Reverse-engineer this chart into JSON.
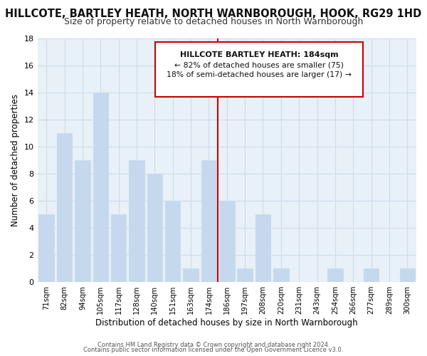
{
  "title": "HILLCOTE, BARTLEY HEATH, NORTH WARNBOROUGH, HOOK, RG29 1HD",
  "subtitle": "Size of property relative to detached houses in North Warnborough",
  "xlabel": "Distribution of detached houses by size in North Warnborough",
  "ylabel": "Number of detached properties",
  "bar_labels": [
    "71sqm",
    "82sqm",
    "94sqm",
    "105sqm",
    "117sqm",
    "128sqm",
    "140sqm",
    "151sqm",
    "163sqm",
    "174sqm",
    "186sqm",
    "197sqm",
    "208sqm",
    "220sqm",
    "231sqm",
    "243sqm",
    "254sqm",
    "266sqm",
    "277sqm",
    "289sqm",
    "300sqm"
  ],
  "bar_values": [
    5,
    11,
    9,
    14,
    5,
    9,
    8,
    6,
    1,
    9,
    6,
    1,
    5,
    1,
    0,
    0,
    1,
    0,
    1,
    0,
    1
  ],
  "bar_color": "#c5d8ed",
  "bar_edge_color": "#c8ddf0",
  "vline_index": 10,
  "vline_color": "#cc0000",
  "annotation_title": "HILLCOTE BARTLEY HEATH: 184sqm",
  "annotation_line1": "← 82% of detached houses are smaller (75)",
  "annotation_line2": "18% of semi-detached houses are larger (17) →",
  "annotation_box_edge": "#cc0000",
  "ylim": [
    0,
    18
  ],
  "yticks": [
    0,
    2,
    4,
    6,
    8,
    10,
    12,
    14,
    16,
    18
  ],
  "background_color": "#ffffff",
  "plot_bg_color": "#e8f0f8",
  "grid_color": "#d0dce8",
  "footer_line1": "Contains HM Land Registry data © Crown copyright and database right 2024.",
  "footer_line2": "Contains public sector information licensed under the Open Government Licence v3.0.",
  "title_fontsize": 10.5,
  "subtitle_fontsize": 9.0
}
